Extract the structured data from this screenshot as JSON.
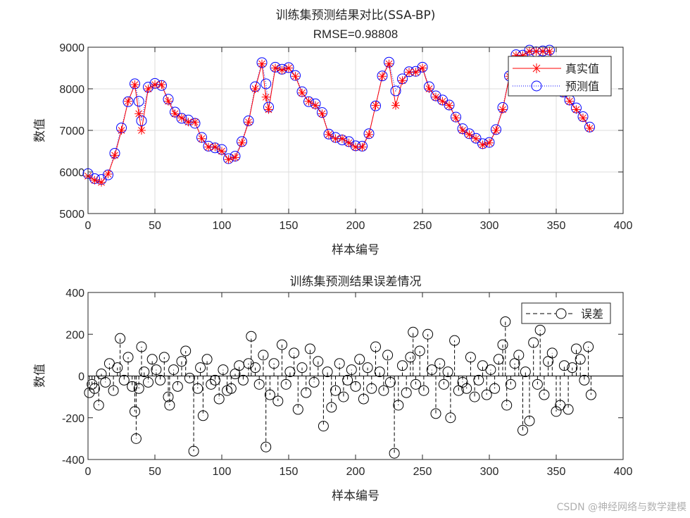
{
  "chart_data": [
    {
      "type": "line",
      "title": "训练集预测结果对比(SSA-BP)",
      "subtitle": "RMSE=0.98808",
      "xlabel": "样本编号",
      "ylabel": "数值",
      "xlim": [
        0,
        400
      ],
      "ylim": [
        5000,
        9000
      ],
      "xticks": [
        "0",
        "50",
        "100",
        "150",
        "200",
        "250",
        "300",
        "350",
        "400"
      ],
      "yticks": [
        "5000",
        "6000",
        "7000",
        "8000",
        "9000"
      ],
      "grid": true,
      "legend_placement": "top-right",
      "x": [
        0,
        5,
        10,
        15,
        20,
        25,
        30,
        35,
        38,
        40,
        45,
        50,
        55,
        60,
        65,
        70,
        75,
        80,
        85,
        90,
        95,
        100,
        105,
        110,
        115,
        120,
        125,
        130,
        133,
        135,
        140,
        145,
        150,
        155,
        160,
        165,
        170,
        175,
        180,
        185,
        190,
        195,
        200,
        205,
        210,
        215,
        220,
        225,
        230,
        235,
        240,
        245,
        250,
        255,
        260,
        265,
        270,
        275,
        280,
        285,
        290,
        295,
        300,
        305,
        310,
        315,
        320,
        325,
        330,
        335,
        340,
        345,
        350,
        355,
        360,
        365,
        370,
        375
      ],
      "series": [
        {
          "name": "真实值",
          "color": "#ff0000",
          "marker": "asterisk",
          "line": "solid",
          "values": [
            5900,
            5800,
            5750,
            5950,
            6400,
            7000,
            7700,
            8100,
            7400,
            7000,
            8000,
            8100,
            8100,
            7700,
            7400,
            7300,
            7200,
            7200,
            6800,
            6600,
            6600,
            6500,
            6300,
            6350,
            6700,
            7200,
            8000,
            8600,
            7800,
            7500,
            8500,
            8450,
            8500,
            8300,
            7900,
            7700,
            7600,
            7400,
            6900,
            6800,
            6800,
            6700,
            6600,
            6600,
            6900,
            7600,
            8300,
            8600,
            7600,
            8200,
            8400,
            8400,
            8500,
            8000,
            7800,
            7700,
            7600,
            7300,
            7000,
            6900,
            6800,
            6650,
            6700,
            7000,
            7500,
            8300,
            8800,
            8800,
            8900,
            8900,
            8900,
            8900,
            8300,
            7900,
            7700,
            7500,
            7300,
            7050
          ]
        },
        {
          "name": "预测值",
          "color": "#0000ff",
          "marker": "circle",
          "line": "dotted",
          "values": [
            5960,
            5840,
            5820,
            5930,
            6450,
            7060,
            7690,
            8120,
            7700,
            7230,
            8040,
            8130,
            8080,
            7750,
            7440,
            7290,
            7250,
            7170,
            6830,
            6620,
            6580,
            6540,
            6320,
            6380,
            6730,
            7230,
            8050,
            8630,
            8120,
            7560,
            8520,
            8470,
            8510,
            8320,
            7930,
            7690,
            7640,
            7430,
            6910,
            6830,
            6770,
            6730,
            6630,
            6620,
            6920,
            7590,
            8310,
            8640,
            7950,
            8240,
            8410,
            8420,
            8520,
            8050,
            7830,
            7730,
            7610,
            7320,
            7040,
            6920,
            6810,
            6680,
            6710,
            7020,
            7550,
            8310,
            8820,
            8810,
            8930,
            8890,
            8910,
            8930,
            8320,
            7920,
            7730,
            7540,
            7330,
            7080
          ]
        }
      ]
    },
    {
      "type": "line",
      "title": "训练集预测结果误差情况",
      "xlabel": "样本编号",
      "ylabel": "数值",
      "xlim": [
        0,
        400
      ],
      "ylim": [
        -400,
        400
      ],
      "xticks": [
        "0",
        "50",
        "100",
        "150",
        "200",
        "250",
        "300",
        "350",
        "400"
      ],
      "yticks": [
        "-400",
        "-200",
        "0",
        "200",
        "400"
      ],
      "grid": false,
      "legend_placement": "top-right",
      "series": [
        {
          "name": "误差",
          "color": "#000000",
          "marker": "circle",
          "line": "dashed stem",
          "x": [
            1,
            3,
            5,
            8,
            10,
            13,
            16,
            19,
            22,
            24,
            27,
            30,
            33,
            35,
            36,
            38,
            40,
            42,
            45,
            48,
            51,
            54,
            57,
            60,
            61,
            64,
            67,
            70,
            73,
            76,
            79,
            82,
            84,
            86,
            89,
            92,
            95,
            98,
            101,
            104,
            107,
            110,
            113,
            116,
            120,
            122,
            125,
            128,
            131,
            133,
            136,
            139,
            142,
            145,
            148,
            151,
            154,
            157,
            160,
            163,
            166,
            169,
            172,
            176,
            179,
            182,
            185,
            188,
            191,
            194,
            197,
            200,
            203,
            206,
            209,
            212,
            215,
            218,
            221,
            224,
            226,
            229,
            232,
            235,
            238,
            241,
            243,
            245,
            248,
            251,
            254,
            257,
            260,
            263,
            266,
            269,
            271,
            274,
            277,
            280,
            283,
            286,
            289,
            292,
            295,
            298,
            301,
            304,
            307,
            310,
            312,
            313,
            316,
            319,
            322,
            325,
            327,
            330,
            333,
            336,
            338,
            341,
            344,
            347,
            350,
            353,
            356,
            359,
            362,
            365,
            368,
            371,
            374,
            376
          ],
          "values": [
            -80,
            -40,
            -60,
            -140,
            10,
            -30,
            60,
            -70,
            40,
            180,
            -20,
            90,
            -50,
            -170,
            -300,
            -60,
            140,
            20,
            -30,
            80,
            30,
            -20,
            90,
            -100,
            -140,
            30,
            -50,
            70,
            120,
            -10,
            -360,
            -60,
            40,
            -190,
            80,
            -40,
            -20,
            -110,
            30,
            -70,
            -60,
            10,
            50,
            -20,
            60,
            190,
            40,
            -40,
            100,
            -340,
            -90,
            60,
            -120,
            150,
            -40,
            20,
            110,
            -160,
            40,
            -80,
            130,
            -30,
            70,
            -240,
            20,
            -150,
            -70,
            60,
            -100,
            -20,
            30,
            -50,
            80,
            -110,
            40,
            -60,
            140,
            20,
            -70,
            100,
            -30,
            -370,
            -140,
            50,
            -80,
            90,
            210,
            -40,
            120,
            -70,
            200,
            30,
            -180,
            60,
            -40,
            20,
            -200,
            170,
            -70,
            -30,
            -60,
            90,
            -100,
            -20,
            50,
            -90,
            30,
            -60,
            80,
            150,
            260,
            -140,
            -40,
            60,
            100,
            -260,
            20,
            -215,
            160,
            -40,
            220,
            -90,
            70,
            110,
            -170,
            -140,
            50,
            -160,
            40,
            130,
            80,
            -20,
            140,
            -90
          ]
        }
      ]
    }
  ],
  "watermark": "CSDN @神经网络与数学建模"
}
